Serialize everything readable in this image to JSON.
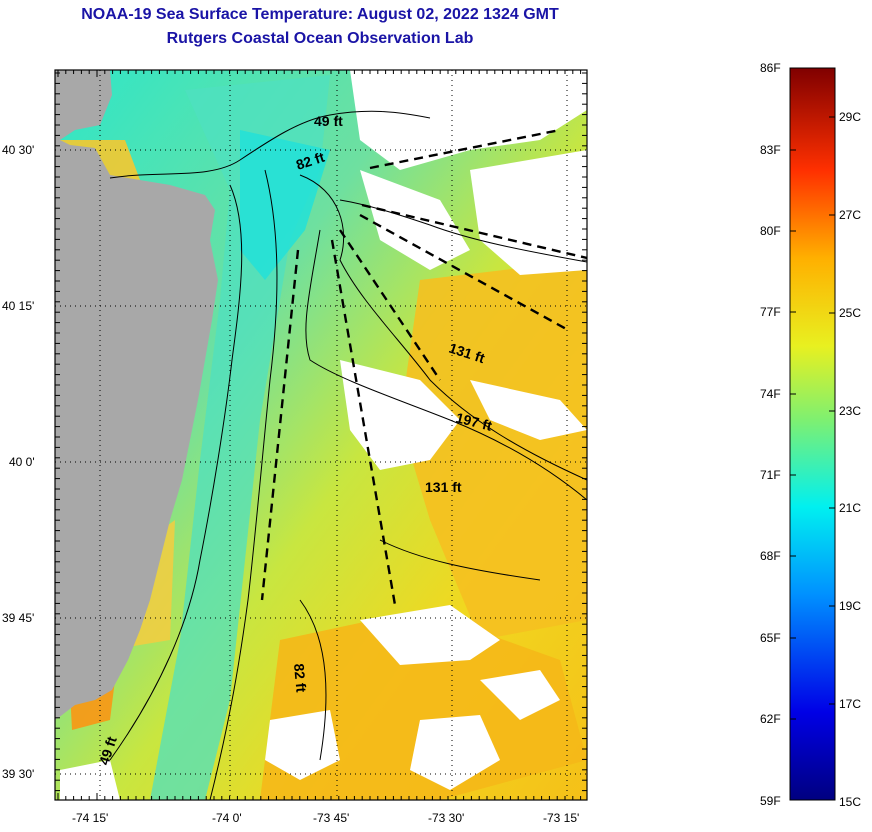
{
  "header": {
    "title": "NOAA-19 Sea Surface Temperature:  August 02, 2022 1324 GMT",
    "subtitle": "Rutgers Coastal Ocean Observation Lab"
  },
  "map": {
    "lat_labels": [
      "40 30'",
      "40 15'",
      "40 0'",
      "39 45'",
      "39 30'"
    ],
    "lon_labels": [
      "-74 15'",
      "-74 0'",
      "-73 45'",
      "-73 30'",
      "-73 15'"
    ],
    "contour_labels": [
      "49 ft",
      "82 ft",
      "131 ft",
      "197 ft",
      "131 ft",
      "82 ft",
      "49 ft"
    ]
  },
  "colorbar": {
    "fahrenheit_labels": [
      "86F",
      "83F",
      "80F",
      "77F",
      "74F",
      "71F",
      "68F",
      "65F",
      "62F",
      "59F"
    ],
    "celsius_labels": [
      "29C",
      "27C",
      "25C",
      "23C",
      "21C",
      "19C",
      "17C",
      "15C"
    ]
  },
  "colors": {
    "title": "#1a14a6",
    "land": "#a8a8a8",
    "no_data": "#ffffff"
  }
}
